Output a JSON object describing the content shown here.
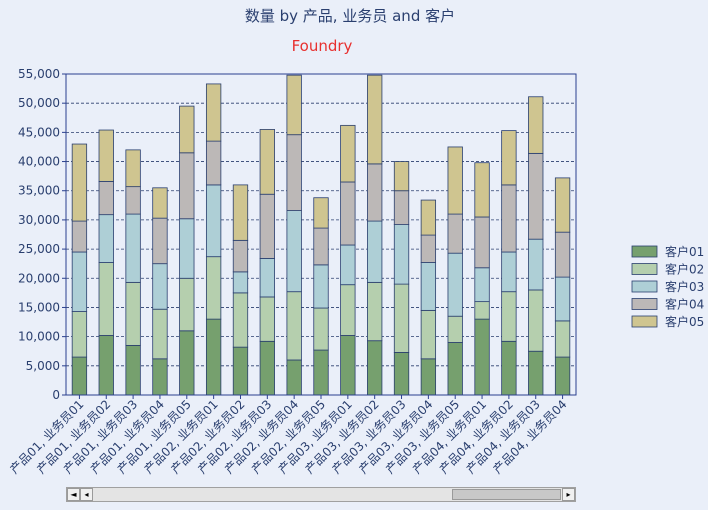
{
  "chart_data": {
    "type": "bar",
    "stacked": true,
    "title": "数量 by 产品, 业务员 and 客户",
    "subtitle": "Foundry",
    "ylim": [
      0,
      55000
    ],
    "y_ticks": [
      "0",
      "5,000",
      "10,000",
      "15,000",
      "20,000",
      "25,000",
      "30,000",
      "35,000",
      "40,000",
      "45,000",
      "50,000",
      "55,000"
    ],
    "grid": true,
    "legend_position": "right",
    "categories": [
      "产品01, 业务员01",
      "产品01, 业务员02",
      "产品01, 业务员03",
      "产品01, 业务员04",
      "产品01, 业务员05",
      "产品02, 业务员01",
      "产品02, 业务员02",
      "产品02, 业务员03",
      "产品02, 业务员04",
      "产品02, 业务员05",
      "产品03, 业务员01",
      "产品03, 业务员02",
      "产品03, 业务员03",
      "产品03, 业务员04",
      "产品03, 业务员05",
      "产品04, 业务员01",
      "产品04, 业务员02",
      "产品04, 业务员03",
      "产品04, 业务员04"
    ],
    "series": [
      {
        "name": "客户01",
        "color": "#76a06e",
        "values": [
          6500,
          10200,
          8500,
          6200,
          11000,
          13000,
          8200,
          9200,
          6000,
          7700,
          10200,
          9300,
          7300,
          6200,
          9000,
          13000,
          9200,
          7500,
          6500
        ]
      },
      {
        "name": "客户02",
        "color": "#b5cfae",
        "values": [
          7800,
          12500,
          10800,
          8500,
          9000,
          10700,
          9300,
          7600,
          11700,
          7200,
          8700,
          10000,
          11700,
          8300,
          4500,
          3000,
          8500,
          10500,
          6200
        ]
      },
      {
        "name": "客户03",
        "color": "#aecfd6",
        "values": [
          10200,
          8200,
          11700,
          7800,
          10200,
          12300,
          3600,
          6600,
          13900,
          7400,
          6800,
          10500,
          10200,
          8200,
          10800,
          5800,
          6800,
          8700,
          7500
        ]
      },
      {
        "name": "客户04",
        "color": "#bcb8b7",
        "values": [
          5300,
          5700,
          4700,
          7800,
          11300,
          7500,
          5400,
          11000,
          13000,
          6300,
          10800,
          9800,
          5800,
          4700,
          6700,
          8700,
          11500,
          14700,
          7700
        ]
      },
      {
        "name": "客户05",
        "color": "#cfc590",
        "values": [
          13200,
          8800,
          6300,
          5200,
          8000,
          9800,
          9500,
          11100,
          10200,
          5200,
          9700,
          15200,
          5000,
          6000,
          11500,
          9300,
          9300,
          9700,
          9300
        ]
      }
    ]
  }
}
